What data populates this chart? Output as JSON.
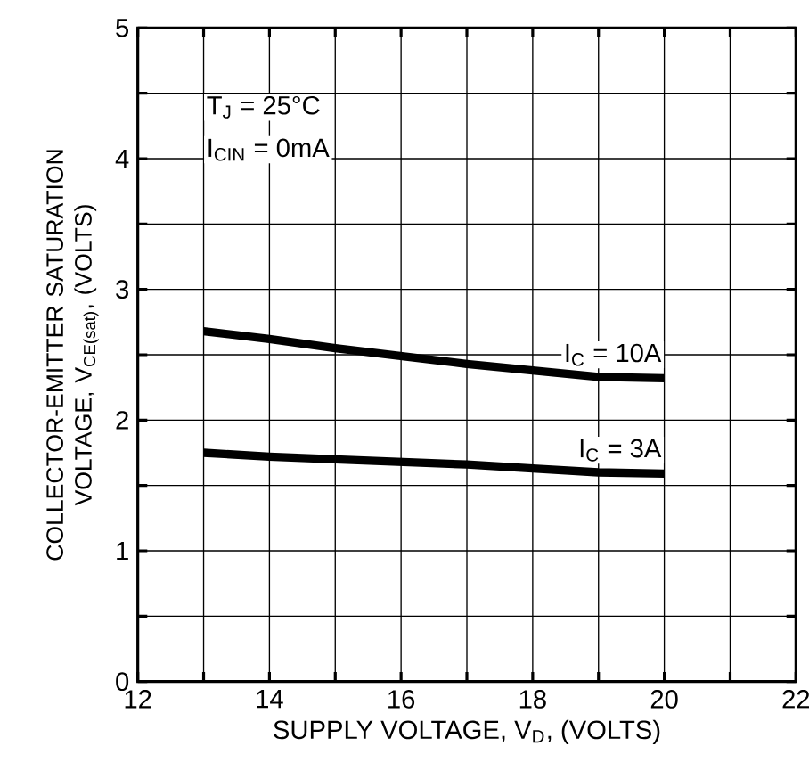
{
  "chart_data": {
    "type": "line",
    "xlabel": "SUPPLY VOLTAGE, V$_{D}$, (VOLTS)",
    "ylabel": "COLLECTOR-EMITTER SATURATION VOLTAGE, V$_{CE(sat)}$, (VOLTS)",
    "xlim": [
      12,
      22
    ],
    "ylim": [
      0,
      5
    ],
    "xticks": [
      12,
      {
        "value": 13,
        "label": null
      },
      14,
      {
        "value": 15,
        "label": null
      },
      16,
      {
        "value": 17,
        "label": null
      },
      18,
      {
        "value": 19,
        "label": null
      },
      20,
      {
        "value": 21,
        "label": null
      },
      22
    ],
    "yticks": [
      0,
      {
        "value": 0.5,
        "label": null
      },
      1,
      {
        "value": 1.5,
        "label": null
      },
      2,
      {
        "value": 2.5,
        "label": null
      },
      3,
      {
        "value": 3.5,
        "label": null
      },
      4,
      {
        "value": 4.5,
        "label": null
      },
      5
    ],
    "grid": true,
    "marker": "none",
    "line_style": "solid",
    "x": [
      13,
      14,
      15,
      16,
      17,
      18,
      19,
      20
    ],
    "series": [
      {
        "name": "I$_{C}$ = 10A",
        "color": "#000000",
        "values": [
          2.68,
          2.62,
          2.55,
          2.49,
          2.43,
          2.38,
          2.33,
          2.32
        ]
      },
      {
        "name": "I$_{C}$ = 3A",
        "color": "#000000",
        "values": [
          1.75,
          1.72,
          1.7,
          1.68,
          1.66,
          1.63,
          1.6,
          1.59
        ]
      }
    ],
    "annotations": [
      "T$_{J}$ = 25°C",
      "I$_{CIN}$ = 0mA"
    ]
  }
}
